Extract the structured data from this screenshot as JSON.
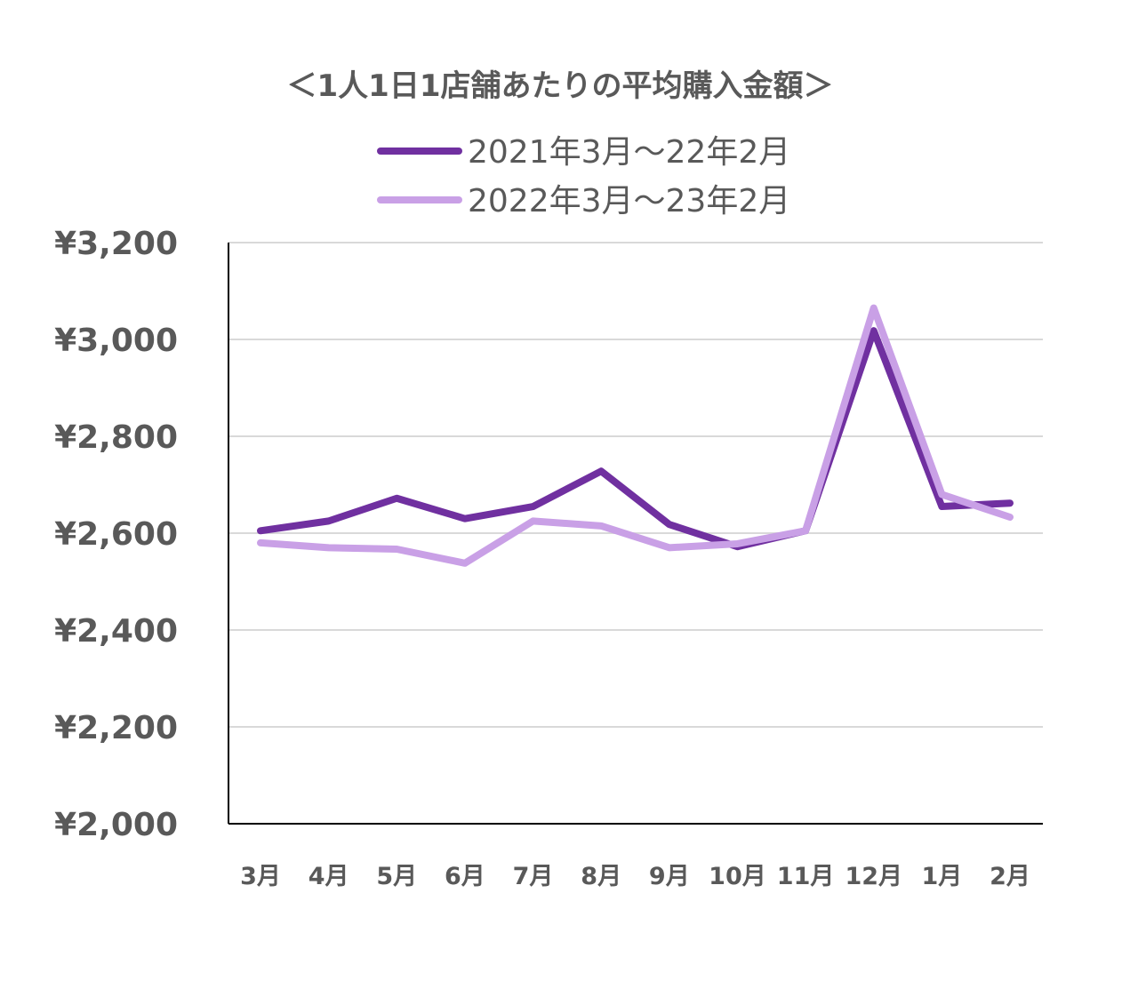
{
  "chart_data": {
    "type": "line",
    "title": "＜1人1日1店舗あたりの平均購入金額＞",
    "categories": [
      "3月",
      "4月",
      "5月",
      "6月",
      "7月",
      "8月",
      "9月",
      "10月",
      "11月",
      "12月",
      "1月",
      "2月"
    ],
    "series": [
      {
        "name": "2021年3月～22年2月",
        "color": "#7030a0",
        "values": [
          2605,
          2625,
          2672,
          2630,
          2655,
          2728,
          2618,
          2572,
          2605,
          3018,
          2655,
          2662
        ]
      },
      {
        "name": "2022年3月～23年2月",
        "color": "#c9a0e6",
        "values": [
          2580,
          2570,
          2567,
          2538,
          2625,
          2615,
          2570,
          2578,
          2605,
          3065,
          2680,
          2633
        ]
      }
    ],
    "ytick_labels": [
      "¥3,200",
      "¥3,000",
      "¥2,800",
      "¥2,600",
      "¥2,400",
      "¥2,200",
      "¥2,000"
    ],
    "ylim": [
      2000,
      3200
    ],
    "grid": true,
    "legend_position": "top-center"
  }
}
